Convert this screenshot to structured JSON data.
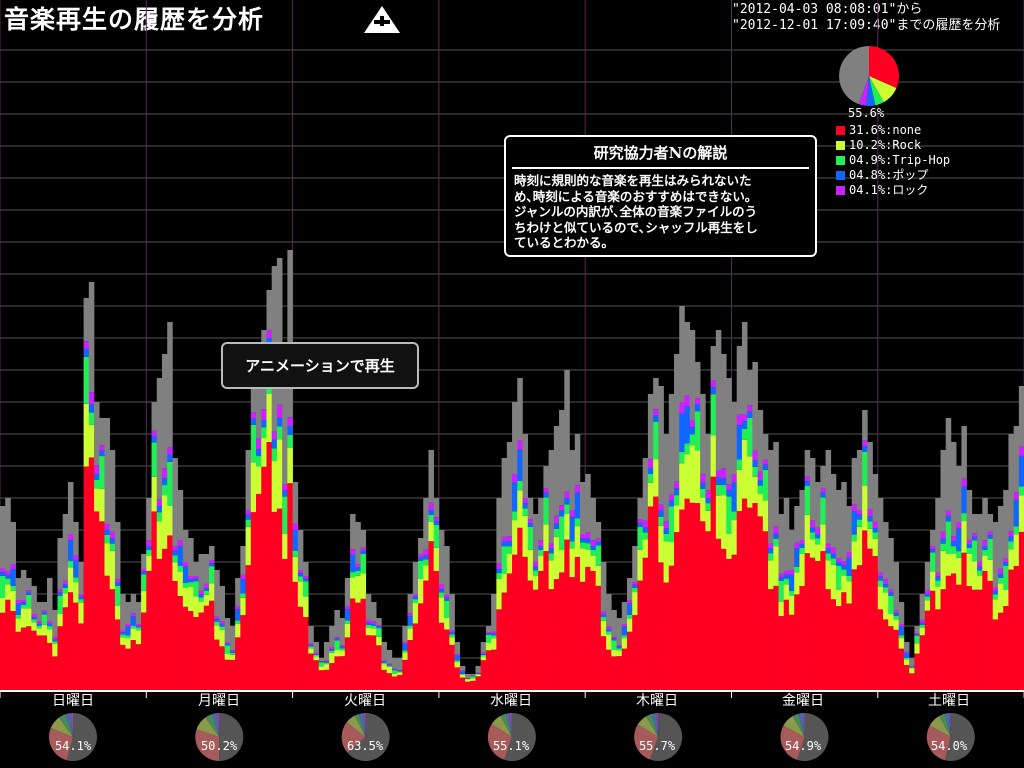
{
  "header": {
    "title": "音楽再生の履歴を分析",
    "range_line1": "\"2012-04-03 08:08:01\"から",
    "range_line2": "\"2012-12-01 17:09:40\"までの履歴を分析"
  },
  "icons": {
    "home": "home-icon"
  },
  "overall": {
    "other_pct": "55.6%",
    "legend": [
      {
        "label": "31.6%:none",
        "color": "#ff0022",
        "value": 31.6
      },
      {
        "label": "10.2%:Rock",
        "color": "#ccff33",
        "value": 10.2
      },
      {
        "label": "04.9%:Trip-Hop",
        "color": "#22ee55",
        "value": 4.9
      },
      {
        "label": "04.8%:ポップ",
        "color": "#1166ff",
        "value": 4.8
      },
      {
        "label": "04.1%:ロック",
        "color": "#cc22ff",
        "value": 4.1
      }
    ],
    "other_color": "#808080"
  },
  "comment": {
    "title": "研究協力者Nの解説",
    "lines": [
      "時刻に規則的な音楽を再生はみられないた",
      "め､時刻による音楽のおすすめはできない｡",
      "ジャンルの内訳が､全体の音楽ファイルのう",
      "ちわけと似ているので､シャッフル再生をし",
      "ているとわかる｡"
    ]
  },
  "buttons": {
    "animation": "アニメーションで再生"
  },
  "chart_data": {
    "type": "bar",
    "stacked": true,
    "series_order": [
      "none",
      "Rock",
      "Trip-Hop",
      "ポップ",
      "ロック",
      "other"
    ],
    "colors": {
      "none": "#ff0022",
      "Rock": "#ccff33",
      "Trip-Hop": "#22ee55",
      "ポップ": "#1166ff",
      "ロック": "#cc22ff",
      "other": "#808080"
    },
    "ylim": [
      0,
      400
    ],
    "days": [
      {
        "label": "日曜日",
        "pct": "54.1%",
        "pie": [
          54.1,
          27,
          9,
          5,
          3,
          1.9
        ]
      },
      {
        "label": "月曜日",
        "pct": "50.2%",
        "pie": [
          50.2,
          30,
          10,
          5,
          3,
          1.8
        ]
      },
      {
        "label": "火曜日",
        "pct": "63.5%",
        "pie": [
          63.5,
          22,
          7,
          3,
          3,
          1.5
        ]
      },
      {
        "label": "水曜日",
        "pct": "55.1%",
        "pie": [
          55.1,
          29,
          8,
          4,
          2,
          1.9
        ]
      },
      {
        "label": "木曜日",
        "pct": "55.7%",
        "pie": [
          55.7,
          28,
          8,
          4,
          3,
          1.3
        ]
      },
      {
        "label": "金曜日",
        "pct": "54.9%",
        "pie": [
          54.9,
          28,
          9,
          4,
          3,
          1.1
        ]
      },
      {
        "label": "土曜日",
        "pct": "54.0%",
        "pie": [
          54.0,
          29,
          9,
          4,
          3,
          1.0
        ]
      }
    ],
    "totals": [
      [
        115,
        120,
        105,
        70,
        75,
        70,
        65,
        55,
        55,
        70,
        50,
        95,
        110,
        130,
        105,
        80,
        245,
        255,
        180,
        170,
        170,
        150,
        105,
        60,
        55,
        60,
        55,
        85
      ],
      [
        120,
        180,
        195,
        210,
        230,
        145,
        125,
        100,
        95,
        80,
        85,
        85,
        90,
        75,
        65,
        45,
        40,
        70,
        90,
        150,
        195,
        215,
        225,
        250,
        265,
        270,
        195,
        275
      ],
      [
        130,
        100,
        80,
        40,
        30,
        20,
        30,
        40,
        50,
        45,
        70,
        110,
        105,
        100,
        60,
        55,
        45,
        30,
        25,
        20,
        20,
        40,
        60,
        80,
        95,
        120,
        150,
        120
      ],
      [
        100,
        90,
        60,
        30,
        15,
        10,
        10,
        15,
        30,
        40,
        60,
        120,
        145,
        155,
        180,
        195,
        160,
        120,
        110,
        120,
        140,
        150,
        165,
        175,
        200,
        150,
        160,
        130
      ],
      [
        135,
        120,
        105,
        80,
        60,
        50,
        45,
        55,
        70,
        90,
        120,
        145,
        185,
        195,
        190,
        160,
        185,
        210,
        240,
        230,
        225,
        205,
        185,
        160,
        215,
        225,
        210,
        195
      ],
      [
        180,
        215,
        230,
        200,
        205,
        175,
        160,
        150,
        155,
        110,
        120,
        100,
        115,
        125,
        150,
        145,
        130,
        140,
        150,
        135,
        125,
        130,
        115,
        145,
        150,
        175,
        155,
        135
      ],
      [
        120,
        105,
        95,
        80,
        55,
        30,
        20,
        40,
        60,
        80,
        100,
        120,
        150,
        170,
        155,
        140,
        165,
        125,
        110,
        110,
        120,
        110,
        105,
        115,
        125,
        160,
        165,
        190
      ]
    ]
  }
}
